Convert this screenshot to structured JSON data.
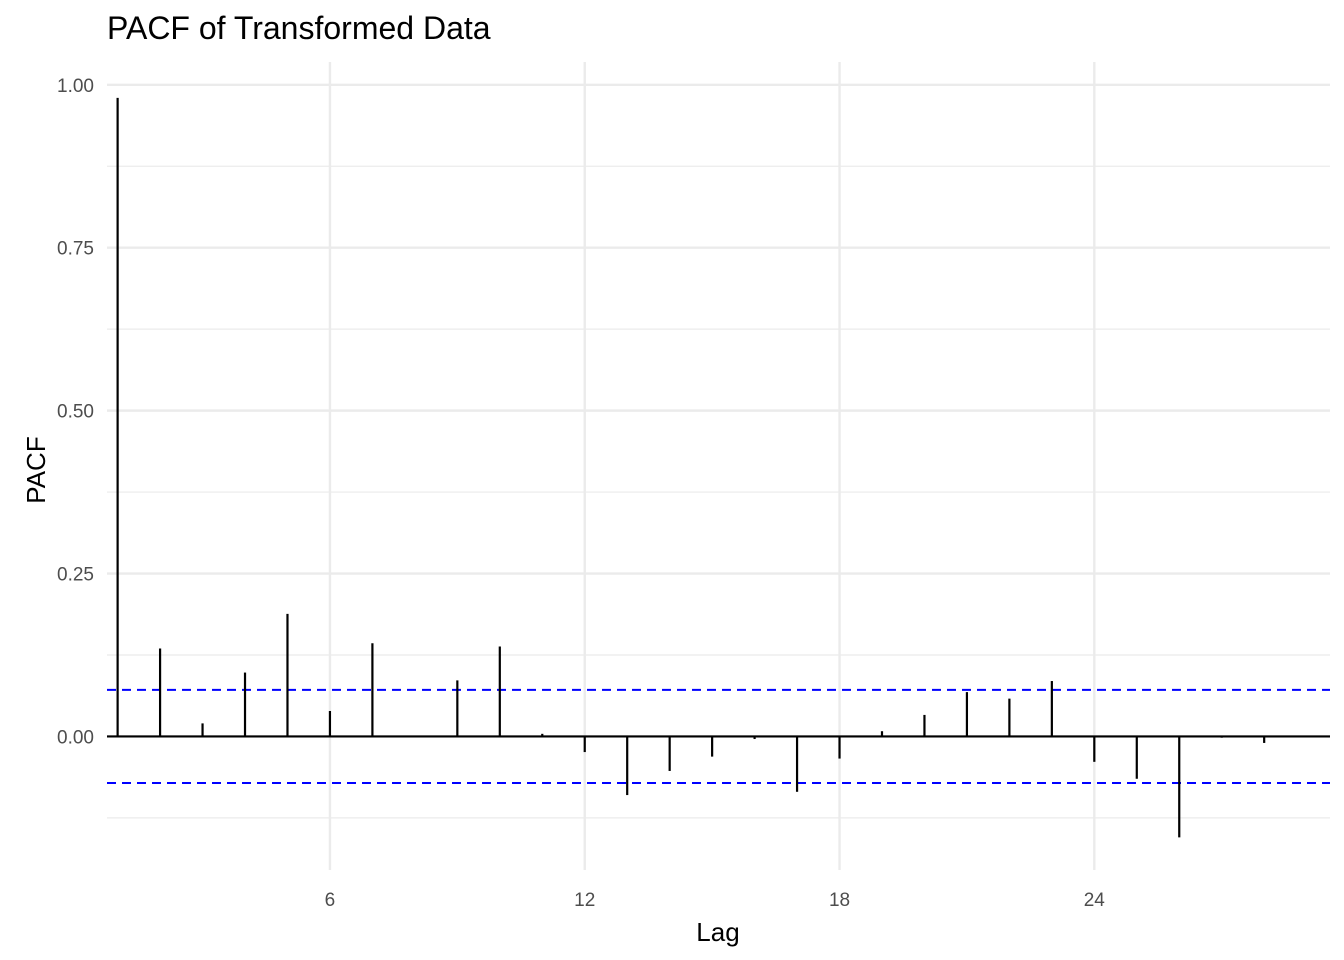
{
  "chart_data": {
    "type": "bar",
    "title": "PACF of Transformed Data",
    "xlabel": "Lag",
    "ylabel": "PACF",
    "x": [
      1,
      2,
      3,
      4,
      5,
      6,
      7,
      8,
      9,
      10,
      11,
      12,
      13,
      14,
      15,
      16,
      17,
      18,
      19,
      20,
      21,
      22,
      23,
      24,
      25,
      26,
      27,
      28
    ],
    "values": [
      0.98,
      0.135,
      0.02,
      0.098,
      0.188,
      0.039,
      0.143,
      0.001,
      0.086,
      0.138,
      0.004,
      -0.024,
      -0.09,
      -0.053,
      -0.031,
      -0.004,
      -0.085,
      -0.034,
      0.008,
      0.033,
      0.068,
      0.058,
      0.085,
      -0.039,
      -0.065,
      -0.155,
      -0.002,
      -0.01
    ],
    "confidence_limit": 0.0715,
    "confidence_color": "#0000ff",
    "bar_color": "#000000",
    "xlim": [
      0.75,
      29.55
    ],
    "ylim": [
      -0.205,
      1.035
    ],
    "x_ticks": [
      6,
      12,
      18,
      24
    ],
    "x_tick_labels": [
      "6",
      "12",
      "18",
      "24"
    ],
    "y_ticks": [
      0,
      0.25,
      0.5,
      0.75,
      1.0
    ],
    "y_tick_labels": [
      "0.00",
      "0.25",
      "0.50",
      "0.75",
      "1.00"
    ],
    "grid": true,
    "grid_color": "#ebebeb"
  }
}
